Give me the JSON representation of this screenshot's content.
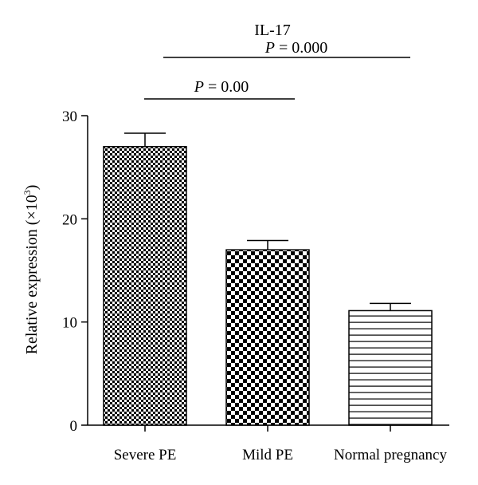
{
  "chart_data": {
    "type": "bar",
    "title": "IL-17",
    "ylabel_main": "Relative expression (×10",
    "ylabel_sup": "3",
    "ylabel_close": ")",
    "xlabel": "",
    "ylim": [
      0,
      30
    ],
    "yticks": [
      "0",
      "10",
      "20",
      "30"
    ],
    "categories": [
      "Severe PE",
      "Mild PE",
      "Normal pregnancy"
    ],
    "values": [
      27.0,
      17.0,
      11.1
    ],
    "errors": [
      1.3,
      0.9,
      0.7
    ],
    "patterns": [
      "small-checker",
      "large-checker",
      "horizontal-lines"
    ],
    "significance": [
      {
        "label_italic": "P",
        "label_rest": " = 0.000",
        "between": [
          "Severe PE",
          "Normal pregnancy"
        ]
      },
      {
        "label_italic": "P",
        "label_rest": " = 0.00",
        "between": [
          "Severe PE",
          "Mild PE"
        ]
      }
    ],
    "grid": false,
    "legend": "none"
  },
  "colors": {
    "foreground": "#000000",
    "background": "#ffffff"
  }
}
